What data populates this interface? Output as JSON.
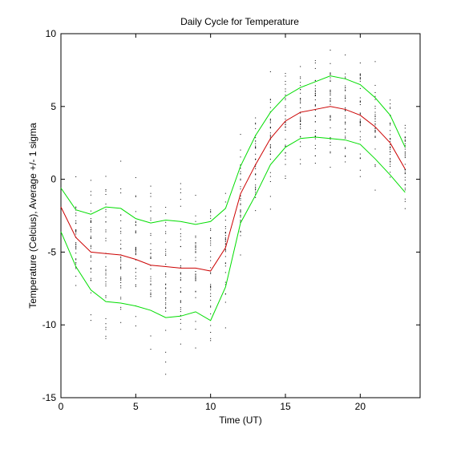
{
  "chart_data": {
    "type": "line",
    "title": "Daily Cycle for Temperature",
    "xlabel": "Time (UT)",
    "ylabel": "Temperature (Celcius), Average +/- 1 sigma",
    "xlim": [
      0,
      24
    ],
    "ylim": [
      -15,
      10
    ],
    "x_ticks": [
      0,
      5,
      10,
      15,
      20
    ],
    "y_ticks": [
      -15,
      -10,
      -5,
      0,
      5,
      10
    ],
    "grid": false,
    "colors": {
      "mean": "#cc0000",
      "sigma": "#00dd00",
      "points": "#000000",
      "axes": "#000000"
    },
    "x": [
      0,
      1,
      2,
      3,
      4,
      5,
      6,
      7,
      8,
      9,
      10,
      11,
      12,
      13,
      14,
      15,
      16,
      17,
      18,
      19,
      20,
      21,
      22,
      23
    ],
    "series": [
      {
        "values": [
          -1.9,
          -4.0,
          -5.0,
          -5.1,
          -5.2,
          -5.5,
          -5.9,
          -6.0,
          -6.1,
          -6.1,
          -6.3,
          -4.7,
          -1.0,
          1.0,
          2.8,
          4.0,
          4.6,
          4.8,
          5.0,
          4.8,
          4.4,
          3.6,
          2.5,
          0.7
        ]
      },
      {
        "values": [
          -0.6,
          -2.1,
          -2.4,
          -1.9,
          -2.0,
          -2.7,
          -3.0,
          -2.8,
          -2.9,
          -3.1,
          -2.9,
          -2.0,
          0.9,
          3.0,
          4.6,
          5.7,
          6.3,
          6.7,
          7.1,
          6.9,
          6.5,
          5.6,
          4.4,
          2.2
        ]
      },
      {
        "values": [
          -3.6,
          -6.0,
          -7.6,
          -8.4,
          -8.5,
          -8.7,
          -9.0,
          -9.5,
          -9.4,
          -9.1,
          -9.7,
          -7.4,
          -3.0,
          -1.1,
          1.0,
          2.2,
          2.8,
          2.9,
          2.8,
          2.7,
          2.4,
          1.4,
          0.3,
          -0.9
        ]
      }
    ],
    "scatter_spread": [
      2.4,
      2.8,
      3.4,
      3.8,
      3.6,
      3.5,
      3.6,
      3.9,
      3.8,
      3.6,
      3.9,
      3.2,
      2.6,
      2.6,
      2.8,
      2.8,
      2.6,
      2.6,
      2.6,
      2.6,
      2.6,
      2.6,
      2.4,
      2.2
    ]
  }
}
